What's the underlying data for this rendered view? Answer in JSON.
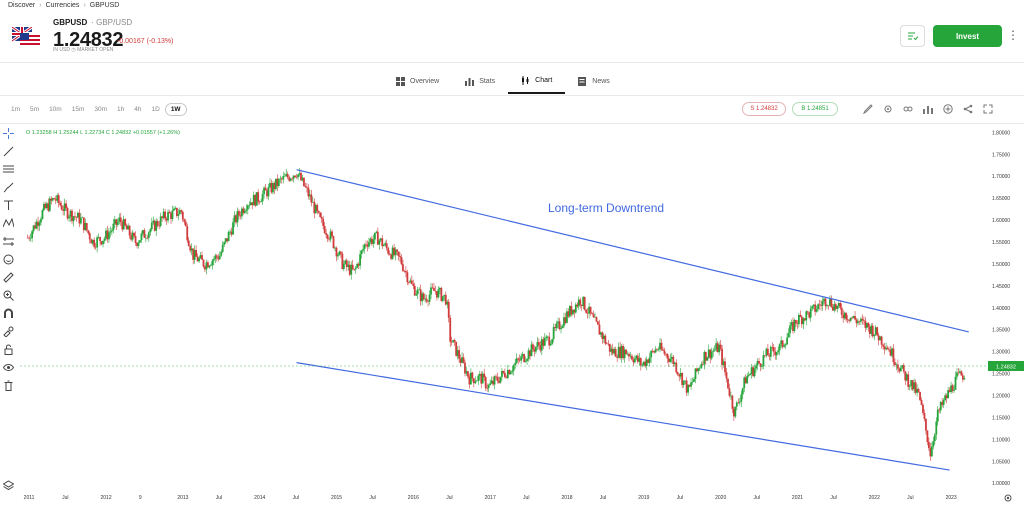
{
  "breadcrumb": [
    "Discover",
    "Currencies",
    "GBPUSD"
  ],
  "instrument": {
    "symbol": "GBPUSD",
    "pair": "GBP/USD",
    "price": "1.24832",
    "change": "-0.00167 (-0.13%)",
    "currency_note": "IN USD",
    "market_status": "MARKET OPEN"
  },
  "actions": {
    "invest_label": "Invest",
    "watch_icon": "list-check-icon",
    "more_icon": "more-vertical-icon"
  },
  "tabs": [
    {
      "label": "Overview",
      "icon": "grid-icon",
      "active": false
    },
    {
      "label": "Stats",
      "icon": "bar-chart-icon",
      "active": false
    },
    {
      "label": "Chart",
      "icon": "candlestick-icon",
      "active": true
    },
    {
      "label": "News",
      "icon": "newspaper-icon",
      "active": false
    }
  ],
  "timeframes": [
    "1m",
    "5m",
    "10m",
    "15m",
    "30m",
    "1h",
    "4h",
    "1D",
    "1W"
  ],
  "timeframe_selected": "1W",
  "quote": {
    "sell": "S 1.24832",
    "buy": "B 1.24851"
  },
  "ohlc": "O 1.23258  H 1.25244  L 1.22734  C 1.24832  +0.01557 (+1.26%)",
  "colors": {
    "accent_green": "#26a53b",
    "down_red": "#d13b3b",
    "trendline_blue": "#4169e1"
  },
  "chart_data": {
    "type": "candlestick",
    "annotation": "Long-term Downtrend",
    "y_ticks": [
      "1.80000",
      "1.75000",
      "1.70000",
      "1.65000",
      "1.60000",
      "1.55000",
      "1.50000",
      "1.45000",
      "1.40000",
      "1.35000",
      "1.30000",
      "1.25000",
      "1.20000",
      "1.15000",
      "1.10000",
      "1.05000",
      "1.00000"
    ],
    "ylim": [
      0.98,
      1.81
    ],
    "current_price_label": "1.24832",
    "x_ticks": [
      "2011",
      "Jul",
      "2012",
      "9",
      "2013",
      "Jul",
      "2014",
      "Jul",
      "2015",
      "Jul",
      "2016",
      "Jul",
      "2017",
      "Jul",
      "2018",
      "Jul",
      "2019",
      "Jul",
      "2020",
      "Jul",
      "2021",
      "Jul",
      "2022",
      "Jul",
      "2023"
    ],
    "weekly_close_path": [
      [
        2011.0,
        1.56
      ],
      [
        2011.2,
        1.62
      ],
      [
        2011.35,
        1.65
      ],
      [
        2011.5,
        1.62
      ],
      [
        2011.7,
        1.6
      ],
      [
        2011.85,
        1.55
      ],
      [
        2012.0,
        1.56
      ],
      [
        2012.2,
        1.6
      ],
      [
        2012.4,
        1.55
      ],
      [
        2012.6,
        1.58
      ],
      [
        2012.8,
        1.61
      ],
      [
        2013.0,
        1.62
      ],
      [
        2013.15,
        1.52
      ],
      [
        2013.3,
        1.5
      ],
      [
        2013.5,
        1.52
      ],
      [
        2013.7,
        1.6
      ],
      [
        2013.85,
        1.64
      ],
      [
        2014.0,
        1.65
      ],
      [
        2014.3,
        1.69
      ],
      [
        2014.5,
        1.71
      ],
      [
        2014.65,
        1.66
      ],
      [
        2014.8,
        1.6
      ],
      [
        2014.95,
        1.56
      ],
      [
        2015.1,
        1.5
      ],
      [
        2015.25,
        1.48
      ],
      [
        2015.4,
        1.55
      ],
      [
        2015.55,
        1.56
      ],
      [
        2015.7,
        1.53
      ],
      [
        2015.85,
        1.51
      ],
      [
        2016.0,
        1.45
      ],
      [
        2016.15,
        1.42
      ],
      [
        2016.3,
        1.44
      ],
      [
        2016.45,
        1.42
      ],
      [
        2016.5,
        1.33
      ],
      [
        2016.75,
        1.24
      ],
      [
        2016.9,
        1.24
      ],
      [
        2017.0,
        1.22
      ],
      [
        2017.2,
        1.25
      ],
      [
        2017.4,
        1.28
      ],
      [
        2017.6,
        1.31
      ],
      [
        2017.8,
        1.33
      ],
      [
        2018.0,
        1.38
      ],
      [
        2018.2,
        1.42
      ],
      [
        2018.4,
        1.36
      ],
      [
        2018.6,
        1.3
      ],
      [
        2018.8,
        1.3
      ],
      [
        2019.0,
        1.27
      ],
      [
        2019.2,
        1.31
      ],
      [
        2019.4,
        1.28
      ],
      [
        2019.6,
        1.21
      ],
      [
        2019.8,
        1.29
      ],
      [
        2020.0,
        1.31
      ],
      [
        2020.2,
        1.16
      ],
      [
        2020.35,
        1.24
      ],
      [
        2020.6,
        1.29
      ],
      [
        2020.8,
        1.31
      ],
      [
        2021.0,
        1.37
      ],
      [
        2021.2,
        1.39
      ],
      [
        2021.4,
        1.42
      ],
      [
        2021.6,
        1.39
      ],
      [
        2021.8,
        1.37
      ],
      [
        2022.0,
        1.35
      ],
      [
        2022.2,
        1.31
      ],
      [
        2022.4,
        1.25
      ],
      [
        2022.6,
        1.2
      ],
      [
        2022.75,
        1.07
      ],
      [
        2022.85,
        1.16
      ],
      [
        2023.0,
        1.21
      ],
      [
        2023.1,
        1.24
      ],
      [
        2023.2,
        1.25
      ]
    ],
    "trendlines": [
      {
        "from": [
          2014.5,
          1.715
        ],
        "to": [
          2023.25,
          1.345
        ]
      },
      {
        "from": [
          2014.5,
          1.275
        ],
        "to": [
          2023.0,
          1.03
        ]
      }
    ]
  }
}
